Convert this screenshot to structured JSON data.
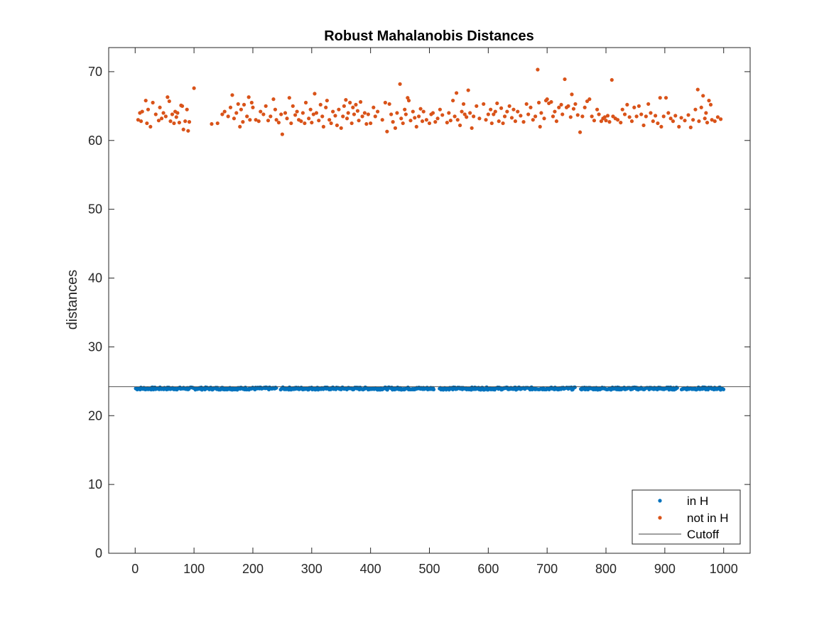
{
  "chart_data": {
    "type": "scatter",
    "title": "Robust Mahalanobis Distances",
    "xlabel": "",
    "ylabel": "distances",
    "xlim": [
      -45,
      1045
    ],
    "ylim": [
      0,
      73.5
    ],
    "xticks": [
      0,
      100,
      200,
      300,
      400,
      500,
      600,
      700,
      800,
      900,
      1000
    ],
    "yticks": [
      0,
      10,
      20,
      30,
      40,
      50,
      60,
      70
    ],
    "grid": false,
    "legend_location": "bottom-right",
    "cutoff": 24.2,
    "series": [
      {
        "name": "in H",
        "color": "#0072BD",
        "marker": "point",
        "generated": {
          "x_start": 1,
          "x_end": 1000,
          "step": 1.25,
          "y_center": 23.95,
          "y_spread": 0.18
        },
        "exclude_x_ranges": [
          [
            240,
            246
          ],
          [
            508,
            516
          ],
          [
            748,
            756
          ],
          [
            922,
            928
          ]
        ],
        "points": []
      },
      {
        "name": "not in H",
        "color": "#D95319",
        "marker": "point",
        "points": [
          [
            5,
            63.0
          ],
          [
            8,
            64.0
          ],
          [
            10,
            62.8
          ],
          [
            12,
            64.2
          ],
          [
            18,
            65.8
          ],
          [
            20,
            62.5
          ],
          [
            22,
            64.5
          ],
          [
            26,
            62.0
          ],
          [
            30,
            65.5
          ],
          [
            35,
            63.8
          ],
          [
            40,
            62.9
          ],
          [
            42,
            64.8
          ],
          [
            45,
            63.2
          ],
          [
            48,
            64.0
          ],
          [
            52,
            63.5
          ],
          [
            55,
            66.3
          ],
          [
            58,
            65.7
          ],
          [
            60,
            62.8
          ],
          [
            63,
            63.8
          ],
          [
            66,
            62.5
          ],
          [
            68,
            64.2
          ],
          [
            70,
            63.4
          ],
          [
            72,
            64.0
          ],
          [
            75,
            62.6
          ],
          [
            78,
            65.1
          ],
          [
            80,
            65.0
          ],
          [
            82,
            61.6
          ],
          [
            85,
            62.8
          ],
          [
            88,
            64.5
          ],
          [
            90,
            61.4
          ],
          [
            92,
            62.7
          ],
          [
            100,
            67.6
          ],
          [
            130,
            62.4
          ],
          [
            140,
            62.5
          ],
          [
            148,
            63.8
          ],
          [
            152,
            64.2
          ],
          [
            158,
            63.5
          ],
          [
            162,
            64.8
          ],
          [
            165,
            66.6
          ],
          [
            168,
            63.2
          ],
          [
            172,
            64.0
          ],
          [
            175,
            65.3
          ],
          [
            178,
            62.0
          ],
          [
            180,
            64.5
          ],
          [
            183,
            62.7
          ],
          [
            185,
            65.2
          ],
          [
            190,
            63.5
          ],
          [
            193,
            66.3
          ],
          [
            195,
            63.0
          ],
          [
            198,
            65.5
          ],
          [
            200,
            64.8
          ],
          [
            205,
            63.0
          ],
          [
            210,
            62.8
          ],
          [
            213,
            64.2
          ],
          [
            218,
            63.8
          ],
          [
            222,
            65.0
          ],
          [
            226,
            62.9
          ],
          [
            230,
            63.5
          ],
          [
            235,
            66.0
          ],
          [
            238,
            64.5
          ],
          [
            240,
            63.0
          ],
          [
            244,
            62.6
          ],
          [
            248,
            63.8
          ],
          [
            250,
            60.9
          ],
          [
            255,
            64.0
          ],
          [
            258,
            63.2
          ],
          [
            262,
            66.2
          ],
          [
            265,
            62.5
          ],
          [
            268,
            65.0
          ],
          [
            272,
            63.7
          ],
          [
            275,
            64.2
          ],
          [
            278,
            63.0
          ],
          [
            282,
            62.8
          ],
          [
            285,
            64.0
          ],
          [
            288,
            62.5
          ],
          [
            290,
            65.5
          ],
          [
            295,
            63.2
          ],
          [
            298,
            64.5
          ],
          [
            300,
            62.6
          ],
          [
            303,
            63.8
          ],
          [
            305,
            66.8
          ],
          [
            308,
            64.0
          ],
          [
            312,
            62.9
          ],
          [
            315,
            65.2
          ],
          [
            318,
            63.5
          ],
          [
            320,
            62.0
          ],
          [
            324,
            64.8
          ],
          [
            326,
            65.8
          ],
          [
            330,
            63.0
          ],
          [
            333,
            62.5
          ],
          [
            336,
            64.2
          ],
          [
            340,
            63.6
          ],
          [
            343,
            62.2
          ],
          [
            346,
            64.5
          ],
          [
            350,
            61.8
          ],
          [
            353,
            63.5
          ],
          [
            355,
            65.0
          ],
          [
            358,
            65.9
          ],
          [
            360,
            63.2
          ],
          [
            362,
            64.0
          ],
          [
            365,
            65.5
          ],
          [
            368,
            62.5
          ],
          [
            370,
            64.8
          ],
          [
            372,
            63.8
          ],
          [
            375,
            65.2
          ],
          [
            378,
            64.3
          ],
          [
            380,
            62.9
          ],
          [
            383,
            65.6
          ],
          [
            386,
            63.5
          ],
          [
            390,
            64.0
          ],
          [
            393,
            62.4
          ],
          [
            396,
            63.8
          ],
          [
            400,
            62.5
          ],
          [
            405,
            64.8
          ],
          [
            408,
            63.5
          ],
          [
            412,
            64.2
          ],
          [
            420,
            63.0
          ],
          [
            425,
            65.5
          ],
          [
            428,
            61.3
          ],
          [
            432,
            65.3
          ],
          [
            435,
            63.8
          ],
          [
            438,
            62.7
          ],
          [
            442,
            61.8
          ],
          [
            445,
            64.0
          ],
          [
            450,
            68.2
          ],
          [
            452,
            63.2
          ],
          [
            455,
            62.5
          ],
          [
            458,
            64.5
          ],
          [
            460,
            63.8
          ],
          [
            463,
            66.2
          ],
          [
            465,
            65.8
          ],
          [
            468,
            62.9
          ],
          [
            472,
            64.2
          ],
          [
            475,
            63.3
          ],
          [
            478,
            62.0
          ],
          [
            482,
            63.5
          ],
          [
            485,
            64.6
          ],
          [
            488,
            62.8
          ],
          [
            490,
            64.2
          ],
          [
            495,
            63.0
          ],
          [
            500,
            62.5
          ],
          [
            503,
            63.8
          ],
          [
            506,
            64.0
          ],
          [
            510,
            62.7
          ],
          [
            514,
            63.2
          ],
          [
            518,
            64.5
          ],
          [
            522,
            63.7
          ],
          [
            530,
            62.6
          ],
          [
            533,
            64.0
          ],
          [
            536,
            62.9
          ],
          [
            540,
            65.8
          ],
          [
            543,
            63.5
          ],
          [
            546,
            66.9
          ],
          [
            548,
            63.0
          ],
          [
            552,
            62.2
          ],
          [
            555,
            64.2
          ],
          [
            558,
            65.3
          ],
          [
            560,
            63.8
          ],
          [
            563,
            63.4
          ],
          [
            566,
            67.3
          ],
          [
            569,
            64.0
          ],
          [
            572,
            61.8
          ],
          [
            575,
            63.5
          ],
          [
            580,
            65.0
          ],
          [
            585,
            63.2
          ],
          [
            592,
            65.3
          ],
          [
            596,
            63.0
          ],
          [
            600,
            63.8
          ],
          [
            604,
            64.5
          ],
          [
            606,
            62.5
          ],
          [
            609,
            63.8
          ],
          [
            612,
            64.2
          ],
          [
            615,
            65.4
          ],
          [
            618,
            62.8
          ],
          [
            622,
            64.7
          ],
          [
            625,
            62.5
          ],
          [
            628,
            63.5
          ],
          [
            632,
            64.2
          ],
          [
            636,
            65.0
          ],
          [
            640,
            63.3
          ],
          [
            643,
            64.5
          ],
          [
            646,
            62.8
          ],
          [
            650,
            64.2
          ],
          [
            655,
            63.6
          ],
          [
            660,
            62.7
          ],
          [
            665,
            65.3
          ],
          [
            668,
            63.8
          ],
          [
            672,
            64.8
          ],
          [
            676,
            63.0
          ],
          [
            680,
            63.5
          ],
          [
            684,
            70.3
          ],
          [
            686,
            65.5
          ],
          [
            688,
            62.0
          ],
          [
            690,
            64.0
          ],
          [
            695,
            63.2
          ],
          [
            698,
            65.8
          ],
          [
            700,
            66.0
          ],
          [
            703,
            65.4
          ],
          [
            707,
            65.6
          ],
          [
            710,
            63.5
          ],
          [
            713,
            64.2
          ],
          [
            716,
            62.8
          ],
          [
            720,
            64.8
          ],
          [
            724,
            65.2
          ],
          [
            726,
            63.8
          ],
          [
            730,
            68.9
          ],
          [
            733,
            64.8
          ],
          [
            736,
            65.0
          ],
          [
            740,
            63.4
          ],
          [
            742,
            66.7
          ],
          [
            745,
            64.6
          ],
          [
            748,
            65.3
          ],
          [
            752,
            63.7
          ],
          [
            756,
            61.2
          ],
          [
            760,
            63.5
          ],
          [
            764,
            64.8
          ],
          [
            768,
            65.7
          ],
          [
            772,
            66.0
          ],
          [
            776,
            63.5
          ],
          [
            780,
            62.9
          ],
          [
            785,
            64.5
          ],
          [
            788,
            63.8
          ],
          [
            792,
            62.8
          ],
          [
            795,
            63.2
          ],
          [
            798,
            63.4
          ],
          [
            800,
            62.9
          ],
          [
            803,
            63.6
          ],
          [
            806,
            62.7
          ],
          [
            810,
            68.8
          ],
          [
            812,
            63.5
          ],
          [
            816,
            63.2
          ],
          [
            820,
            63.0
          ],
          [
            825,
            62.6
          ],
          [
            828,
            64.5
          ],
          [
            832,
            63.8
          ],
          [
            836,
            65.2
          ],
          [
            840,
            63.4
          ],
          [
            844,
            62.8
          ],
          [
            848,
            64.8
          ],
          [
            852,
            63.5
          ],
          [
            856,
            65.0
          ],
          [
            860,
            63.8
          ],
          [
            864,
            62.2
          ],
          [
            868,
            63.5
          ],
          [
            872,
            65.3
          ],
          [
            876,
            64.0
          ],
          [
            880,
            62.8
          ],
          [
            884,
            63.6
          ],
          [
            888,
            62.5
          ],
          [
            892,
            66.2
          ],
          [
            894,
            62.0
          ],
          [
            898,
            63.5
          ],
          [
            902,
            66.2
          ],
          [
            906,
            64.0
          ],
          [
            910,
            63.2
          ],
          [
            914,
            62.8
          ],
          [
            918,
            63.6
          ],
          [
            924,
            62.0
          ],
          [
            928,
            63.3
          ],
          [
            934,
            62.9
          ],
          [
            940,
            63.7
          ],
          [
            944,
            61.9
          ],
          [
            948,
            63.0
          ],
          [
            952,
            64.5
          ],
          [
            956,
            67.4
          ],
          [
            958,
            62.8
          ],
          [
            962,
            64.8
          ],
          [
            965,
            66.5
          ],
          [
            968,
            63.2
          ],
          [
            970,
            64.0
          ],
          [
            972,
            62.6
          ],
          [
            975,
            65.8
          ],
          [
            978,
            65.2
          ],
          [
            980,
            63.0
          ],
          [
            985,
            62.8
          ],
          [
            990,
            63.4
          ],
          [
            995,
            63.1
          ]
        ]
      },
      {
        "name": "Cutoff",
        "color": "#404040",
        "marker": "line"
      }
    ]
  }
}
